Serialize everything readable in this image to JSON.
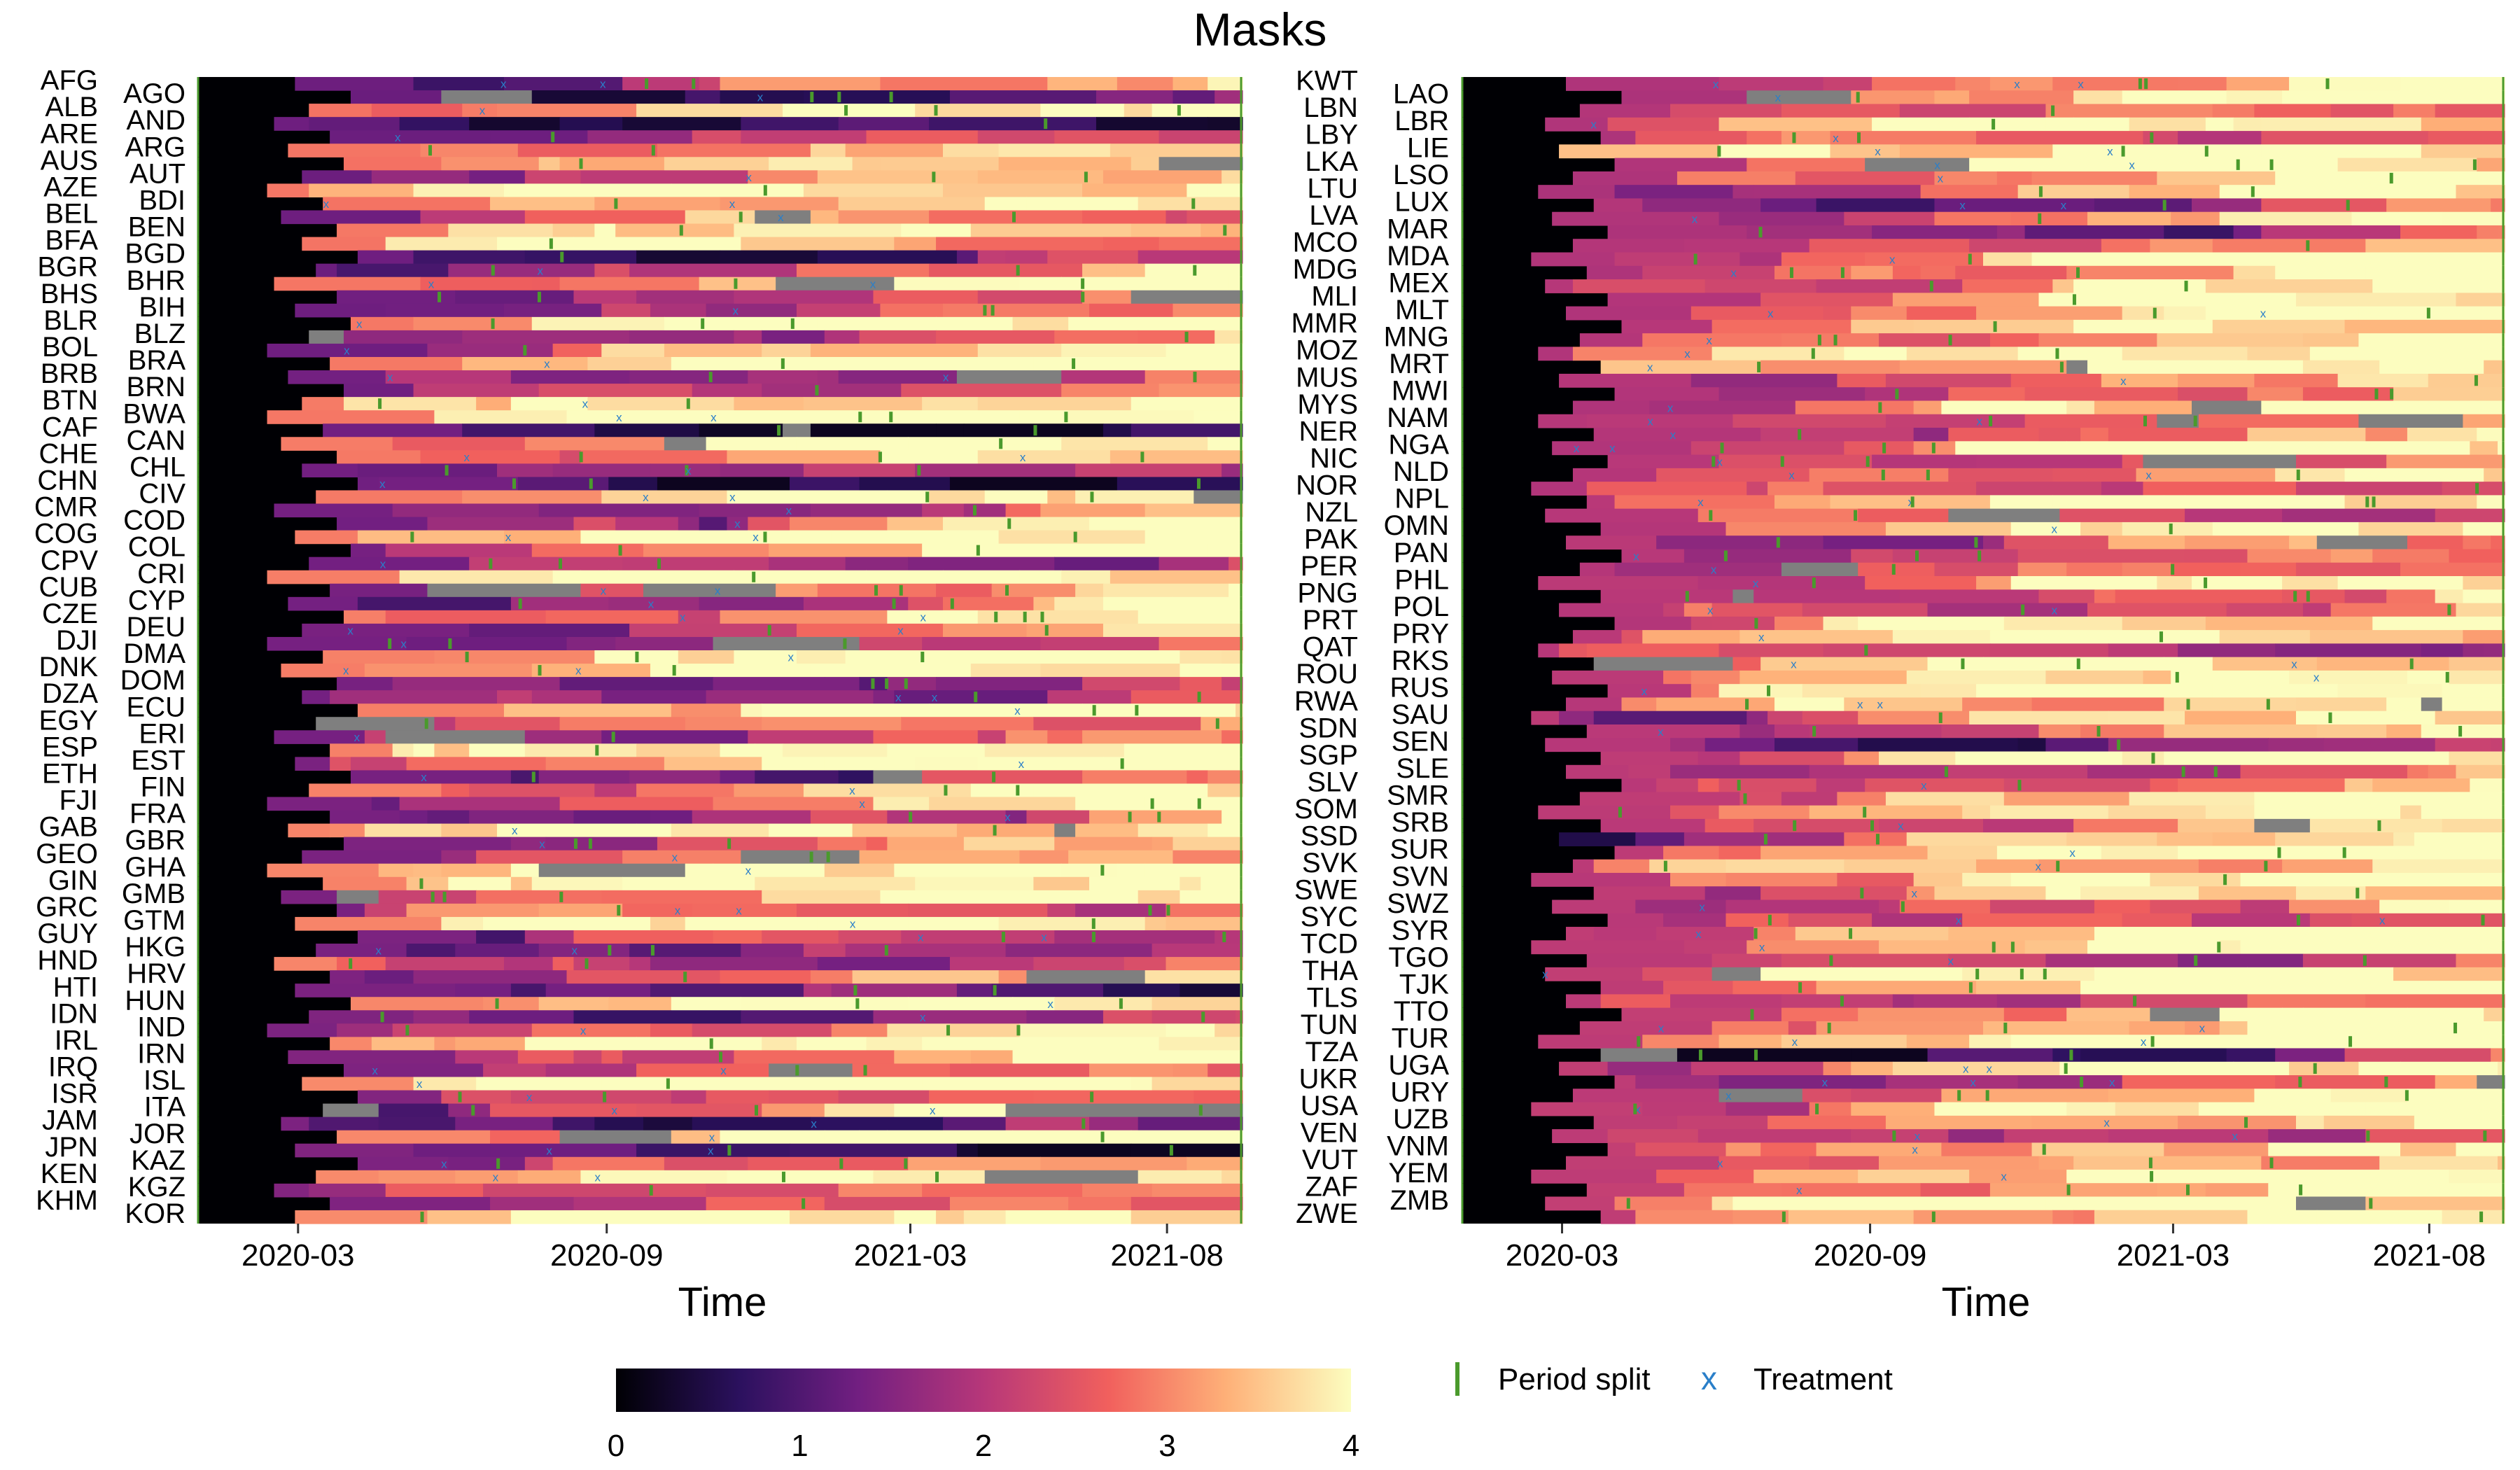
{
  "chart_data": {
    "type": "heatmap",
    "title": "Masks",
    "time": {
      "start": "2020-01-01",
      "end": "2021-09-15",
      "ticks": [
        "2020-03",
        "2020-09",
        "2021-03",
        "2021-08"
      ]
    },
    "xlabel": "Time",
    "color_scale": {
      "name": "magma",
      "range": [
        0,
        4
      ],
      "ticks": [
        "0",
        "1",
        "2",
        "3",
        "4"
      ],
      "colors": [
        "#000004",
        "#2c115f",
        "#721f81",
        "#b73779",
        "#f1605d",
        "#feb078",
        "#fcfdbf"
      ],
      "missing_color": "#7f7f7f"
    },
    "legend": {
      "period_split_label": "Period split",
      "treatment_label": "Treatment",
      "treatment_symbol": "x",
      "period_split_color": "#4a9a2c",
      "treatment_color": "#2a7fc9",
      "placement": "bottom"
    },
    "panels": [
      {
        "countries": [
          "AFG",
          "AGO",
          "ALB",
          "AND",
          "ARE",
          "ARG",
          "AUS",
          "AUT",
          "AZE",
          "BDI",
          "BEL",
          "BEN",
          "BFA",
          "BGD",
          "BGR",
          "BHR",
          "BHS",
          "BIH",
          "BLR",
          "BLZ",
          "BOL",
          "BRA",
          "BRB",
          "BRN",
          "BTN",
          "BWA",
          "CAF",
          "CAN",
          "CHE",
          "CHL",
          "CHN",
          "CIV",
          "CMR",
          "COD",
          "COG",
          "COL",
          "CPV",
          "CRI",
          "CUB",
          "CYP",
          "CZE",
          "DEU",
          "DJI",
          "DMA",
          "DNK",
          "DOM",
          "DZA",
          "ECU",
          "EGY",
          "ERI",
          "ESP",
          "EST",
          "ETH",
          "FIN",
          "FJI",
          "FRA",
          "GAB",
          "GBR",
          "GEO",
          "GHA",
          "GIN",
          "GMB",
          "GRC",
          "GTM",
          "GUY",
          "HKG",
          "HND",
          "HRV",
          "HTI",
          "HUN",
          "IDN",
          "IND",
          "IRL",
          "IRN",
          "IRQ",
          "ISL",
          "ISR",
          "ITA",
          "JAM",
          "JOR",
          "JPN",
          "KAZ",
          "KEN",
          "KGZ",
          "KHM",
          "KOR"
        ]
      },
      {
        "countries": [
          "KWT",
          "LAO",
          "LBN",
          "LBR",
          "LBY",
          "LIE",
          "LKA",
          "LSO",
          "LTU",
          "LUX",
          "LVA",
          "MAR",
          "MCO",
          "MDA",
          "MDG",
          "MEX",
          "MLI",
          "MLT",
          "MMR",
          "MNG",
          "MOZ",
          "MRT",
          "MUS",
          "MWI",
          "MYS",
          "NAM",
          "NER",
          "NGA",
          "NIC",
          "NLD",
          "NOR",
          "NPL",
          "NZL",
          "OMN",
          "PAK",
          "PAN",
          "PER",
          "PHL",
          "PNG",
          "POL",
          "PRT",
          "PRY",
          "QAT",
          "RKS",
          "ROU",
          "RUS",
          "RWA",
          "SAU",
          "SDN",
          "SEN",
          "SGP",
          "SLE",
          "SLV",
          "SMR",
          "SOM",
          "SRB",
          "SSD",
          "SUR",
          "SVK",
          "SVN",
          "SWE",
          "SWZ",
          "SYC",
          "SYR",
          "TCD",
          "TGO",
          "THA",
          "TJK",
          "TLS",
          "TTO",
          "TUN",
          "TUR",
          "TZA",
          "UGA",
          "UKR",
          "URY",
          "USA",
          "UZB",
          "VEN",
          "VNM",
          "VUT",
          "YEM",
          "ZAF",
          "ZMB",
          "ZWE"
        ]
      }
    ]
  }
}
